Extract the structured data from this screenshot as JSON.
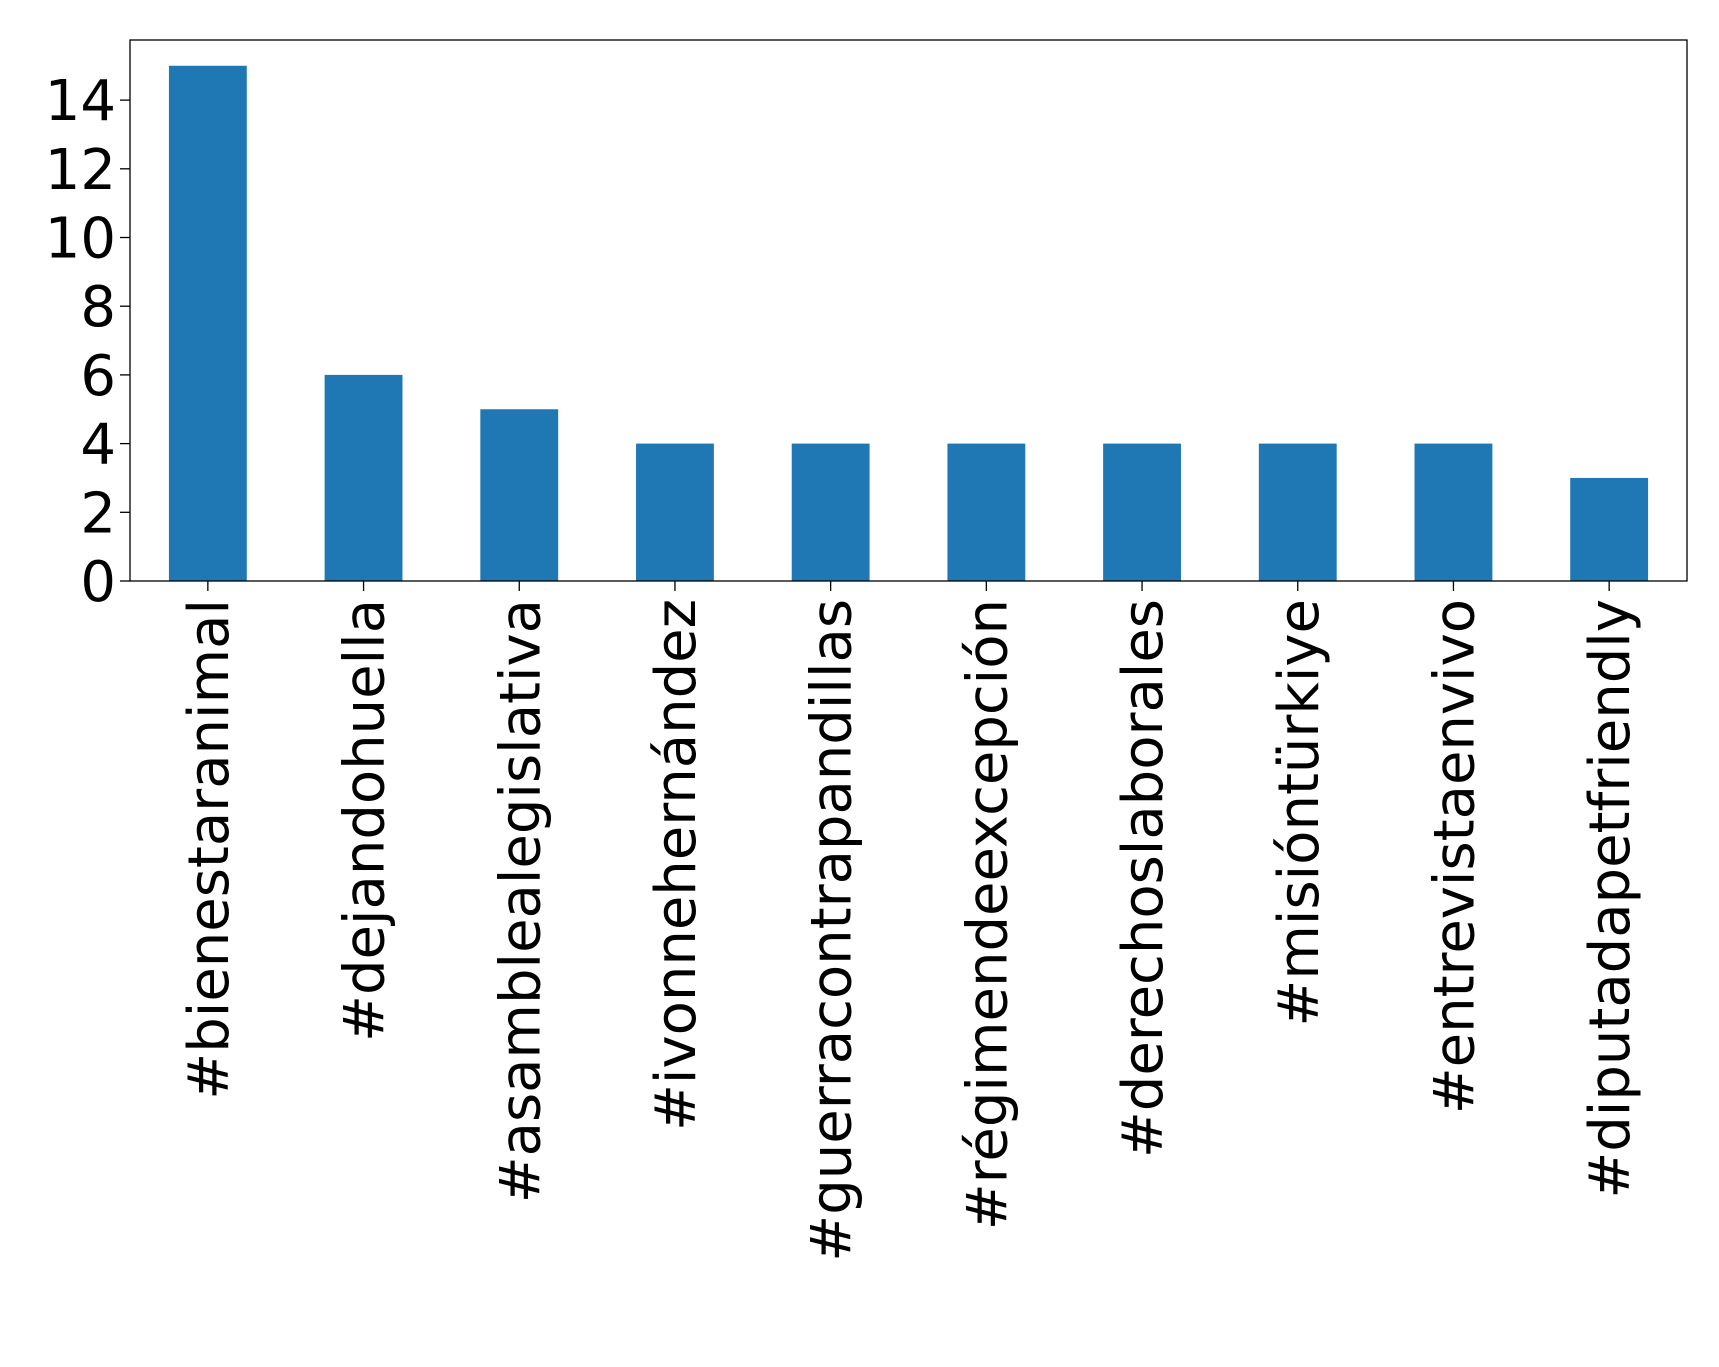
{
  "chart_data": {
    "type": "bar",
    "categories": [
      "#bienestaranimal",
      "#dejandohuella",
      "#asamblealegislativa",
      "#ivonnehernández",
      "#guerracontrapandillas",
      "#régimendeexcepción",
      "#derechoslaborales",
      "#misióntürkiye",
      "#entrevistaenvivo",
      "#diputadapetfriendly"
    ],
    "values": [
      15,
      6,
      5,
      4,
      4,
      4,
      4,
      4,
      4,
      3
    ],
    "color": "#1f77b4",
    "ylim": [
      0,
      15.75
    ],
    "yticks": [
      0,
      2,
      4,
      6,
      8,
      10,
      12,
      14
    ],
    "grid": false
  }
}
